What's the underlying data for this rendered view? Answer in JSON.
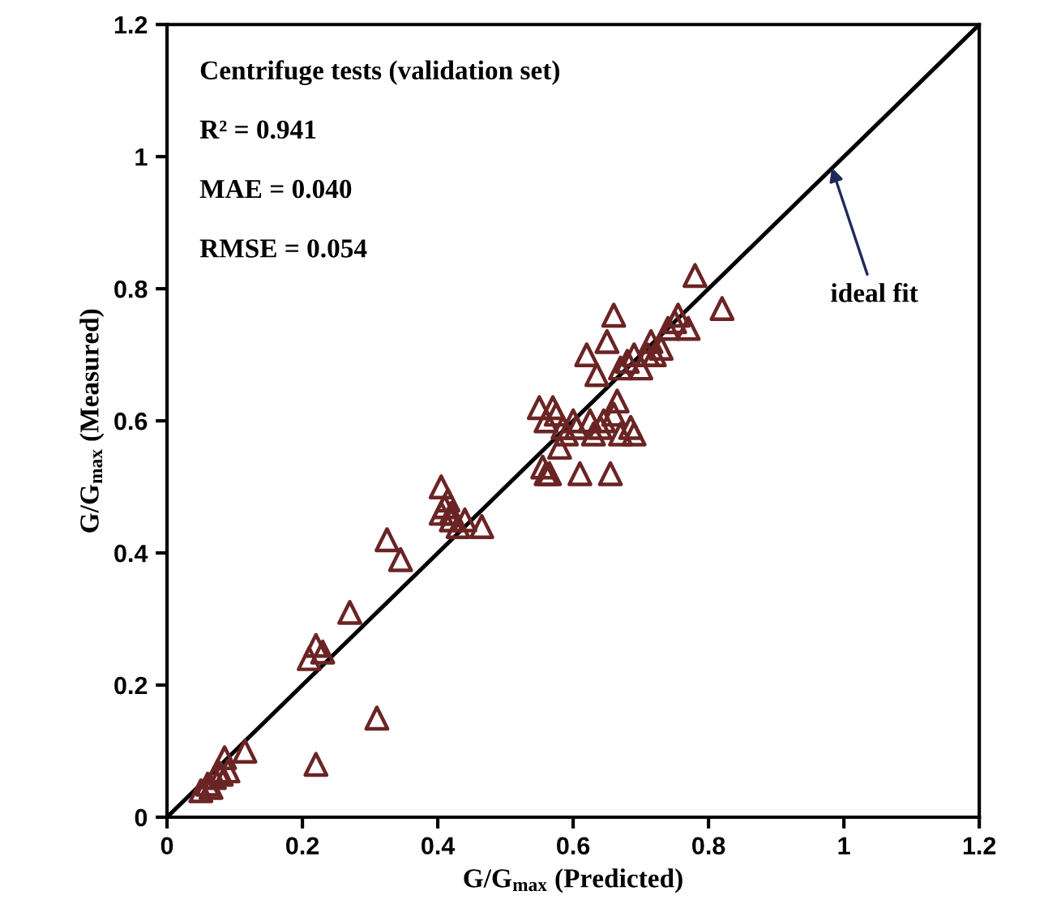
{
  "chart_data": {
    "type": "scatter",
    "xlabel": "G/G$_{max}$ (Predicted)",
    "ylabel": "G/G$_{max}$ (Measured)",
    "xlim": [
      0,
      1.2
    ],
    "ylim": [
      0,
      1.2
    ],
    "xticks": [
      0,
      0.2,
      0.4,
      0.6,
      0.8,
      1,
      1.2
    ],
    "yticks": [
      0,
      0.2,
      0.4,
      0.6,
      0.8,
      1,
      1.2
    ],
    "grid": false,
    "legend": false,
    "annotations": [
      "Centrifuge tests (validation set)",
      "R² = 0.941",
      "MAE = 0.040",
      "RMSE = 0.054",
      {
        "text": "ideal fit",
        "x": 0.98,
        "y": 0.99
      }
    ],
    "series": [
      {
        "color": "#6b2424",
        "marker": "triangle",
        "x": [
          0.05,
          0.06,
          0.065,
          0.07,
          0.075,
          0.08,
          0.085,
          0.09,
          0.115,
          0.22,
          0.31,
          0.21,
          0.22,
          0.23,
          0.27,
          0.325,
          0.345,
          0.405,
          0.41,
          0.415,
          0.42,
          0.42,
          0.43,
          0.44,
          0.465,
          0.405,
          0.55,
          0.555,
          0.56,
          0.565,
          0.56,
          0.57,
          0.575,
          0.58,
          0.585,
          0.59,
          0.6,
          0.605,
          0.61,
          0.625,
          0.63,
          0.64,
          0.655,
          0.66,
          0.665,
          0.67,
          0.685,
          0.69,
          0.62,
          0.635,
          0.65,
          0.66,
          0.67,
          0.68,
          0.69,
          0.7,
          0.71,
          0.715,
          0.72,
          0.73,
          0.74,
          0.75,
          0.755,
          0.77,
          0.78,
          0.82,
          0.645
        ],
        "values": [
          0.04,
          0.05,
          0.045,
          0.06,
          0.07,
          0.065,
          0.09,
          0.07,
          0.1,
          0.08,
          0.15,
          0.24,
          0.26,
          0.25,
          0.31,
          0.42,
          0.39,
          0.5,
          0.47,
          0.48,
          0.46,
          0.45,
          0.44,
          0.45,
          0.44,
          0.46,
          0.62,
          0.53,
          0.52,
          0.52,
          0.6,
          0.62,
          0.61,
          0.56,
          0.59,
          0.58,
          0.6,
          0.59,
          0.52,
          0.6,
          0.58,
          0.59,
          0.52,
          0.61,
          0.63,
          0.58,
          0.59,
          0.58,
          0.7,
          0.67,
          0.72,
          0.76,
          0.68,
          0.69,
          0.7,
          0.68,
          0.7,
          0.72,
          0.7,
          0.71,
          0.74,
          0.75,
          0.76,
          0.74,
          0.82,
          0.77,
          0.6
        ]
      },
      {
        "type": "line",
        "color": "#000000",
        "x": [
          0,
          1.2
        ],
        "values": [
          0,
          1.2
        ]
      }
    ]
  }
}
